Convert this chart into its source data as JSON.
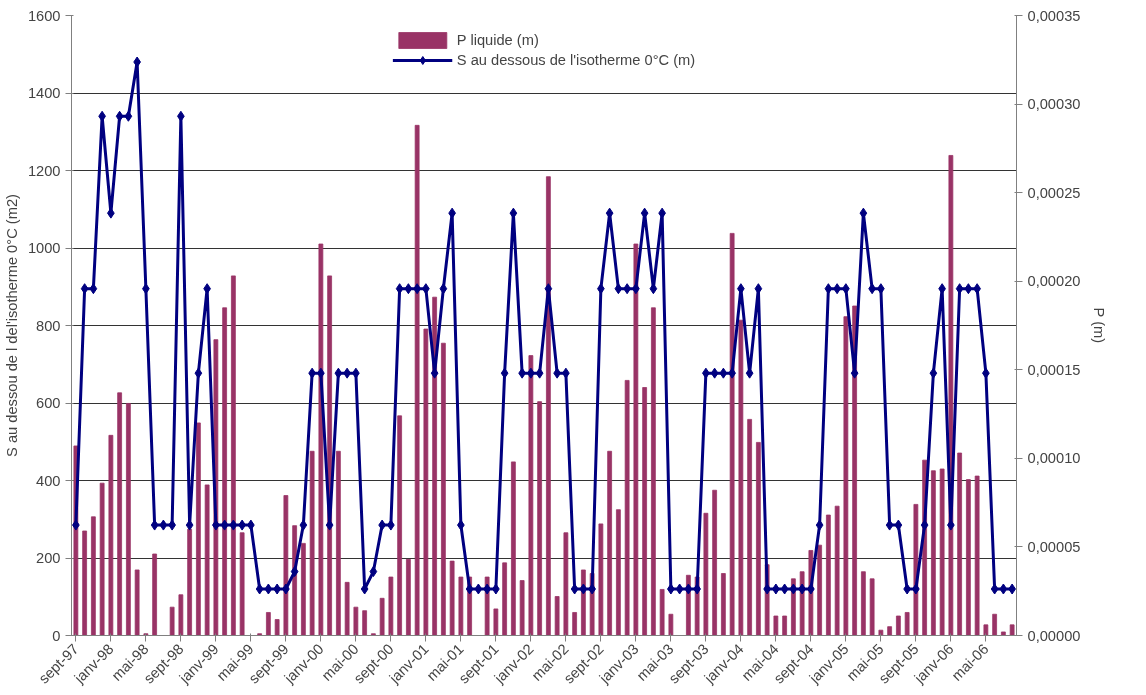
{
  "chart_data": {
    "type": "bar",
    "categories": [
      "sept-97",
      null,
      null,
      null,
      "janv-98",
      null,
      null,
      null,
      "mai-98",
      null,
      null,
      null,
      "sept-98",
      null,
      null,
      null,
      "janv-99",
      null,
      null,
      null,
      "mai-99",
      null,
      null,
      null,
      "sept-99",
      null,
      null,
      null,
      "janv-00",
      null,
      null,
      null,
      "mai-00",
      null,
      null,
      null,
      "sept-00",
      null,
      null,
      null,
      "janv-01",
      null,
      null,
      null,
      "mai-01",
      null,
      null,
      null,
      "sept-01",
      null,
      null,
      null,
      "janv-02",
      null,
      null,
      null,
      "mai-02",
      null,
      null,
      null,
      "sept-02",
      null,
      null,
      null,
      "janv-03",
      null,
      null,
      null,
      "mai-03",
      null,
      null,
      null,
      "sept-03",
      null,
      null,
      null,
      "janv-04",
      null,
      null,
      null,
      "mai-04",
      null,
      null,
      null,
      "sept-04",
      null,
      null,
      null,
      "janv-05",
      null,
      null,
      null,
      "mai-05",
      null,
      null,
      null,
      "sept-05",
      null,
      null,
      null,
      "janv-06",
      null,
      null,
      null,
      "mai-06",
      null,
      null,
      null
    ],
    "series": [
      {
        "name": "P liquide (m)",
        "axis": "y2",
        "color": "#993366",
        "values": [
          0.000107,
          5.9e-05,
          6.7e-05,
          8.6e-05,
          0.000113,
          0.000137,
          0.000131,
          3.7e-05,
          1e-06,
          4.6e-05,
          0,
          1.6e-05,
          2.3e-05,
          6e-05,
          0.00012,
          8.5e-05,
          0.000167,
          0.000185,
          0.000203,
          5.8e-05,
          0,
          1e-06,
          1.3e-05,
          9e-06,
          7.9e-05,
          6.2e-05,
          5.2e-05,
          0.000104,
          0.000221,
          0.000203,
          0.000104,
          3e-05,
          1.6e-05,
          1.4e-05,
          1e-06,
          2.1e-05,
          3.3e-05,
          0.000124,
          4.3e-05,
          0.000288,
          0.000173,
          0.000191,
          0.000165,
          4.2e-05,
          3.3e-05,
          3.3e-05,
          0,
          3.3e-05,
          1.5e-05,
          4.1e-05,
          9.8e-05,
          3.1e-05,
          0.000158,
          0.000132,
          0.000259,
          2.2e-05,
          5.8e-05,
          1.3e-05,
          3.7e-05,
          3.5e-05,
          6.3e-05,
          0.000104,
          7.1e-05,
          0.000144,
          0.000221,
          0.00014,
          0.000185,
          2.6e-05,
          1.2e-05,
          0,
          3.4e-05,
          3.3e-05,
          6.9e-05,
          8.2e-05,
          3.5e-05,
          0.000227,
          0.000178,
          0.000122,
          0.000109,
          4e-05,
          1.1e-05,
          1.1e-05,
          3.2e-05,
          3.6e-05,
          4.8e-05,
          5.1e-05,
          6.8e-05,
          7.3e-05,
          0.00018,
          0.000186,
          3.6e-05,
          3.2e-05,
          3e-06,
          5e-06,
          1.1e-05,
          1.3e-05,
          7.4e-05,
          9.9e-05,
          9.3e-05,
          9.4e-05,
          0.000271,
          0.000103,
          8.8e-05,
          9e-05,
          6e-06,
          1.2e-05,
          2e-06,
          6e-06
        ]
      },
      {
        "name": "S au dessous de l'isotherme 0°C (m)",
        "type": "line",
        "color": "#000080",
        "values": [
          285,
          895,
          895,
          1340,
          1090,
          1340,
          1340,
          1480,
          895,
          285,
          285,
          285,
          1340,
          285,
          677,
          895,
          285,
          285,
          285,
          285,
          285,
          120,
          120,
          120,
          120,
          165,
          285,
          677,
          677,
          285,
          677,
          677,
          677,
          120,
          165,
          285,
          285,
          895,
          895,
          895,
          895,
          677,
          895,
          1090,
          285,
          120,
          120,
          120,
          120,
          677,
          1090,
          677,
          677,
          677,
          895,
          677,
          677,
          120,
          120,
          120,
          895,
          1090,
          895,
          895,
          895,
          1090,
          895,
          1090,
          120,
          120,
          120,
          120,
          677,
          677,
          677,
          677,
          895,
          677,
          895,
          120,
          120,
          120,
          120,
          120,
          120,
          285,
          895,
          895,
          895,
          677,
          1090,
          895,
          895,
          285,
          285,
          120,
          120,
          285,
          677,
          895,
          285,
          895,
          895,
          895,
          677,
          120,
          120,
          120
        ]
      }
    ],
    "ylabel": "S au dessou de l del'isotherme 0°C (m2)",
    "y2label": "P (m)",
    "ylim": [
      0,
      1600
    ],
    "yticks": [
      0,
      200,
      400,
      600,
      800,
      1000,
      1200,
      1400,
      1600
    ],
    "y2lim": [
      0,
      0.00035
    ],
    "y2ticks": [
      {
        "value": 0,
        "label": "0,00000"
      },
      {
        "value": 5e-05,
        "label": "0,00005"
      },
      {
        "value": 0.0001,
        "label": "0,00010"
      },
      {
        "value": 0.00015,
        "label": "0,00015"
      },
      {
        "value": 0.0002,
        "label": "0,00020"
      },
      {
        "value": 0.00025,
        "label": "0,00025"
      },
      {
        "value": 0.0003,
        "label": "0,00030"
      },
      {
        "value": 0.00035,
        "label": "0,00035"
      }
    ],
    "grid": "y",
    "legend": "top",
    "marker": "diamond"
  }
}
